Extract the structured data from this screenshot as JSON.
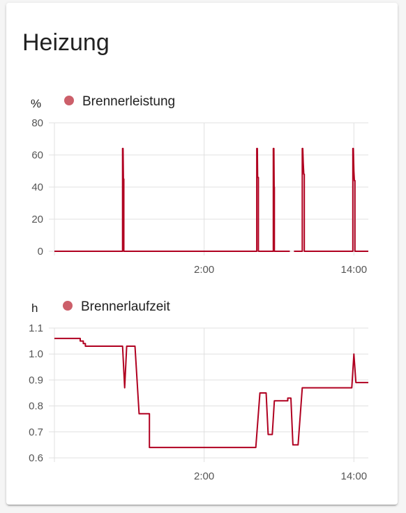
{
  "card": {
    "title": "Heizung"
  },
  "chart_data": [
    {
      "type": "line",
      "unit": "%",
      "series": [
        {
          "name": "Brennerleistung",
          "color": "#b00020",
          "legend_color": "#cc5f6a",
          "step": true,
          "segments": [
            [
              [
                0,
                0
              ],
              [
                6.6,
                0
              ],
              [
                6.6,
                64
              ],
              [
                6.65,
                64
              ],
              [
                6.68,
                45
              ],
              [
                6.72,
                45
              ],
              [
                6.72,
                0
              ],
              [
                19.6,
                0
              ],
              [
                19.6,
                64
              ],
              [
                19.65,
                64
              ],
              [
                19.68,
                46
              ],
              [
                19.75,
                46
              ],
              [
                19.75,
                0
              ],
              [
                21.2,
                0
              ],
              [
                21.2,
                64
              ],
              [
                21.25,
                64
              ],
              [
                21.28,
                40
              ],
              [
                21.3,
                40
              ],
              [
                21.3,
                0
              ],
              [
                22.8,
                0
              ]
            ],
            [
              [
                23.2,
                0
              ],
              [
                24.0,
                0
              ],
              [
                24.0,
                64
              ],
              [
                24.05,
                64
              ],
              [
                24.1,
                55
              ],
              [
                24.15,
                48
              ],
              [
                24.2,
                48
              ],
              [
                24.2,
                0
              ],
              [
                28.9,
                0
              ],
              [
                28.9,
                64
              ],
              [
                28.95,
                64
              ],
              [
                29.0,
                50
              ],
              [
                29.05,
                44
              ],
              [
                29.1,
                44
              ],
              [
                29.1,
                0
              ],
              [
                30.4,
                0
              ]
            ]
          ]
        }
      ],
      "x_ticks": [
        {
          "value": 14.5,
          "label": "2:00"
        },
        {
          "value": 29.0,
          "label": "14:00"
        }
      ],
      "xlim": [
        0,
        30.4
      ],
      "y_ticks": [
        0,
        20,
        40,
        60,
        80
      ],
      "ylim": [
        0,
        80
      ],
      "grid": true,
      "legend": "top-left"
    },
    {
      "type": "line",
      "unit": "h",
      "series": [
        {
          "name": "Brennerlaufzeit",
          "color": "#b00020",
          "legend_color": "#cc5f6a",
          "step": true,
          "segments": [
            [
              [
                0,
                1.06
              ],
              [
                2.5,
                1.06
              ],
              [
                2.5,
                1.05
              ],
              [
                2.8,
                1.05
              ],
              [
                2.8,
                1.04
              ],
              [
                3.0,
                1.04
              ],
              [
                3.0,
                1.03
              ],
              [
                6.6,
                1.03
              ],
              [
                6.8,
                0.87
              ],
              [
                7.0,
                1.03
              ],
              [
                7.8,
                1.03
              ],
              [
                8.2,
                0.77
              ],
              [
                9.2,
                0.77
              ],
              [
                9.2,
                0.64
              ],
              [
                19.5,
                0.64
              ],
              [
                19.9,
                0.85
              ],
              [
                20.5,
                0.85
              ],
              [
                20.7,
                0.69
              ],
              [
                21.1,
                0.69
              ],
              [
                21.3,
                0.82
              ],
              [
                22.6,
                0.82
              ],
              [
                22.6,
                0.83
              ],
              [
                22.9,
                0.83
              ],
              [
                23.1,
                0.65
              ],
              [
                23.6,
                0.65
              ],
              [
                24.0,
                0.87
              ],
              [
                28.8,
                0.87
              ],
              [
                29.0,
                1.0
              ],
              [
                29.2,
                0.89
              ],
              [
                30.4,
                0.89
              ]
            ]
          ]
        }
      ],
      "x_ticks": [
        {
          "value": 14.5,
          "label": "2:00"
        },
        {
          "value": 29.0,
          "label": "14:00"
        }
      ],
      "xlim": [
        0,
        30.4
      ],
      "y_ticks": [
        0.6,
        0.7,
        0.8,
        0.9,
        1.0,
        1.1
      ],
      "y_tick_labels": [
        "0.6",
        "0.7",
        "0.8",
        "0.9",
        "1.0",
        "1.1"
      ],
      "ylim": [
        0.6,
        1.1
      ],
      "grid": true,
      "legend": "top-left"
    }
  ]
}
